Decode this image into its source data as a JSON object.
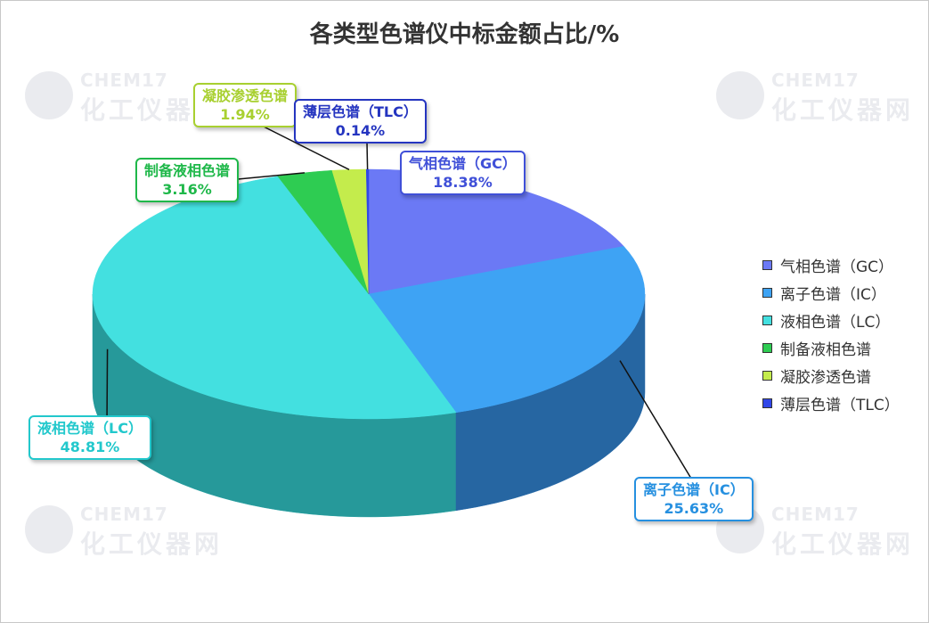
{
  "title": "各类型色谱仪中标金额占比/%",
  "watermark": {
    "brand_en": "CHEM17",
    "brand_cn": "化工仪器网"
  },
  "chart_data": {
    "type": "pie",
    "title": "各类型色谱仪中标金额占比/%",
    "three_d": true,
    "legend_position": "right",
    "slices": [
      {
        "label": "气相色谱（GC）",
        "value": 18.38,
        "value_label": "18.38%",
        "color": "#6b79f5",
        "side_color": "#3a45c8",
        "label_color": "#4050d8"
      },
      {
        "label": "离子色谱（IC）",
        "value": 25.63,
        "value_label": "25.63%",
        "color": "#3ea3f4",
        "side_color": "#2a6fb0",
        "label_color": "#2690e0"
      },
      {
        "label": "液相色谱（LC）",
        "value": 48.81,
        "value_label": "48.81%",
        "color": "#43e0e0",
        "side_color": "#2aa6a8",
        "label_color": "#22c8cc"
      },
      {
        "label": "制备液相色谱",
        "value": 3.16,
        "value_label": "3.16%",
        "color": "#2ecc52",
        "side_color": "#209a3c",
        "label_color": "#1fb84a"
      },
      {
        "label": "凝胶渗透色谱",
        "value": 1.94,
        "value_label": "1.94%",
        "color": "#c4ec4c",
        "side_color": "#98b836",
        "label_color": "#a8d030"
      },
      {
        "label": "薄层色谱（TLC）",
        "value": 0.14,
        "value_label": "0.14%",
        "color": "#3046e8",
        "side_color": "#2030b0",
        "label_color": "#2535c0"
      }
    ]
  }
}
